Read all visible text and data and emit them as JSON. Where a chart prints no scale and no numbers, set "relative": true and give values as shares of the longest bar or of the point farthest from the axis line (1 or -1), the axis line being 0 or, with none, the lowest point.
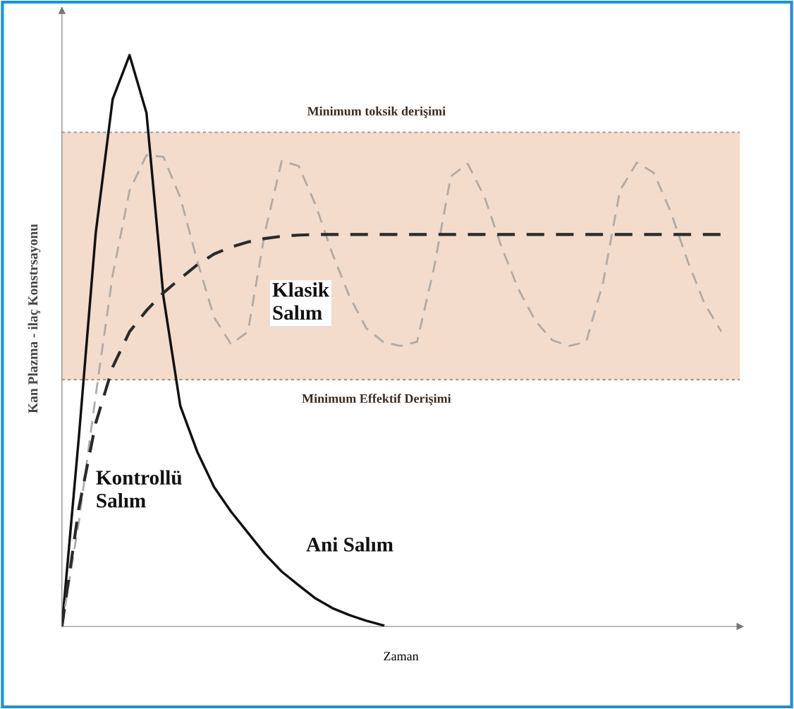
{
  "chart_data": {
    "type": "line",
    "relative": true,
    "xlabel": "Zaman",
    "ylabel": "Kan Plazma - ilaç Konstrsayonu",
    "categories": [
      null,
      null,
      null,
      null,
      null,
      null,
      null,
      null,
      null,
      null,
      null,
      null,
      null,
      null,
      null,
      null,
      null,
      null,
      null,
      null,
      null,
      null,
      null,
      null,
      null,
      null,
      null,
      null,
      null,
      null,
      null,
      null,
      null,
      null,
      null,
      null,
      null,
      null,
      null,
      null
    ],
    "series": [
      {
        "name": "Ani Salım",
        "color": "#111111",
        "line_style": "solid",
        "values": [
          0,
          0.331,
          0.689,
          0.923,
          1,
          0.899,
          0.578,
          0.386,
          0.306,
          0.244,
          0.201,
          0.164,
          0.127,
          0.096,
          0.072,
          0.049,
          0.032,
          0.02,
          0.01,
          0.002,
          null,
          null,
          null,
          null,
          null,
          null,
          null,
          null,
          null,
          null,
          null,
          null,
          null,
          null,
          null,
          null,
          null,
          null,
          null,
          null
        ]
      },
      {
        "name": "Klasik Salım",
        "color": "#b0aaa6",
        "line_style": "dashed",
        "values": [
          0,
          0.183,
          0.405,
          0.615,
          0.763,
          0.825,
          0.822,
          0.751,
          0.64,
          0.541,
          0.494,
          0.516,
          0.689,
          0.815,
          0.806,
          0.738,
          0.652,
          0.578,
          0.522,
          0.498,
          0.491,
          0.498,
          0.627,
          0.788,
          0.81,
          0.751,
          0.664,
          0.59,
          0.535,
          0.501,
          0.491,
          0.498,
          0.602,
          0.763,
          0.812,
          0.794,
          0.726,
          0.64,
          0.565,
          0.516
        ]
      },
      {
        "name": "Kontrollü Salım",
        "color": "#2a2a2a",
        "line_style": "dashed",
        "values": [
          0,
          0.207,
          0.356,
          0.454,
          0.516,
          0.553,
          0.584,
          0.609,
          0.633,
          0.652,
          0.664,
          0.673,
          0.679,
          0.683,
          0.685,
          0.686,
          0.686,
          0.686,
          0.686,
          0.686,
          0.686,
          0.686,
          0.686,
          0.686,
          0.686,
          0.686,
          0.686,
          0.686,
          0.686,
          0.686,
          0.686,
          0.686,
          0.686,
          0.686,
          0.686,
          0.686,
          0.686,
          0.686,
          0.686,
          0.686
        ]
      }
    ],
    "bands": [
      {
        "axis": "y",
        "from": 0.432,
        "to": 0.865,
        "color": "#f3dccc"
      }
    ],
    "ref_lines": [
      {
        "axis": "y",
        "value": 0.865,
        "label": "Minimum toksik derişimi",
        "color": "#a8988c",
        "line_style": "dotted"
      },
      {
        "axis": "y",
        "value": 0.432,
        "label": "Minimum Effektif Derişimi",
        "color": "#a8988c",
        "line_style": "dotted"
      }
    ],
    "grid": false,
    "legend": false
  }
}
